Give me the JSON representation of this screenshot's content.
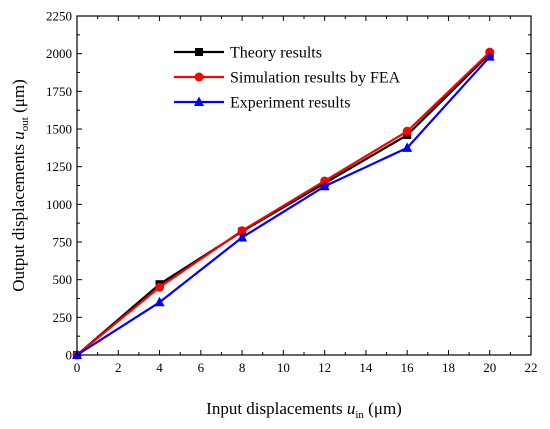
{
  "chart_data": {
    "type": "line",
    "title": "",
    "xlabel": {
      "main": "Input displacements ",
      "var": "u",
      "sub": "in",
      "unit": " (μm)"
    },
    "ylabel": {
      "main": "Output displacements ",
      "var": "u",
      "sub": "out",
      "unit": " (μm)"
    },
    "xlim": [
      0,
      22
    ],
    "ylim": [
      0,
      2250
    ],
    "xticks": [
      0,
      2,
      4,
      6,
      8,
      10,
      12,
      14,
      16,
      18,
      20,
      22
    ],
    "yticks": [
      0,
      250,
      500,
      750,
      1000,
      1250,
      1500,
      1750,
      2000,
      2250
    ],
    "grid": false,
    "legend_position": "top-left",
    "x": [
      0,
      4,
      8,
      12,
      16,
      20
    ],
    "series": [
      {
        "name": "Theory results",
        "color": "#000000",
        "marker": "square",
        "values": [
          0,
          470,
          820,
          1140,
          1460,
          2000
        ]
      },
      {
        "name": "Simulation results by FEA",
        "color": "#ff0000",
        "marker": "circle",
        "values": [
          0,
          450,
          825,
          1155,
          1485,
          2010
        ]
      },
      {
        "name": "Experiment results",
        "color": "#0000ff",
        "marker": "triangle",
        "values": [
          0,
          350,
          780,
          1120,
          1375,
          1980
        ]
      }
    ]
  }
}
